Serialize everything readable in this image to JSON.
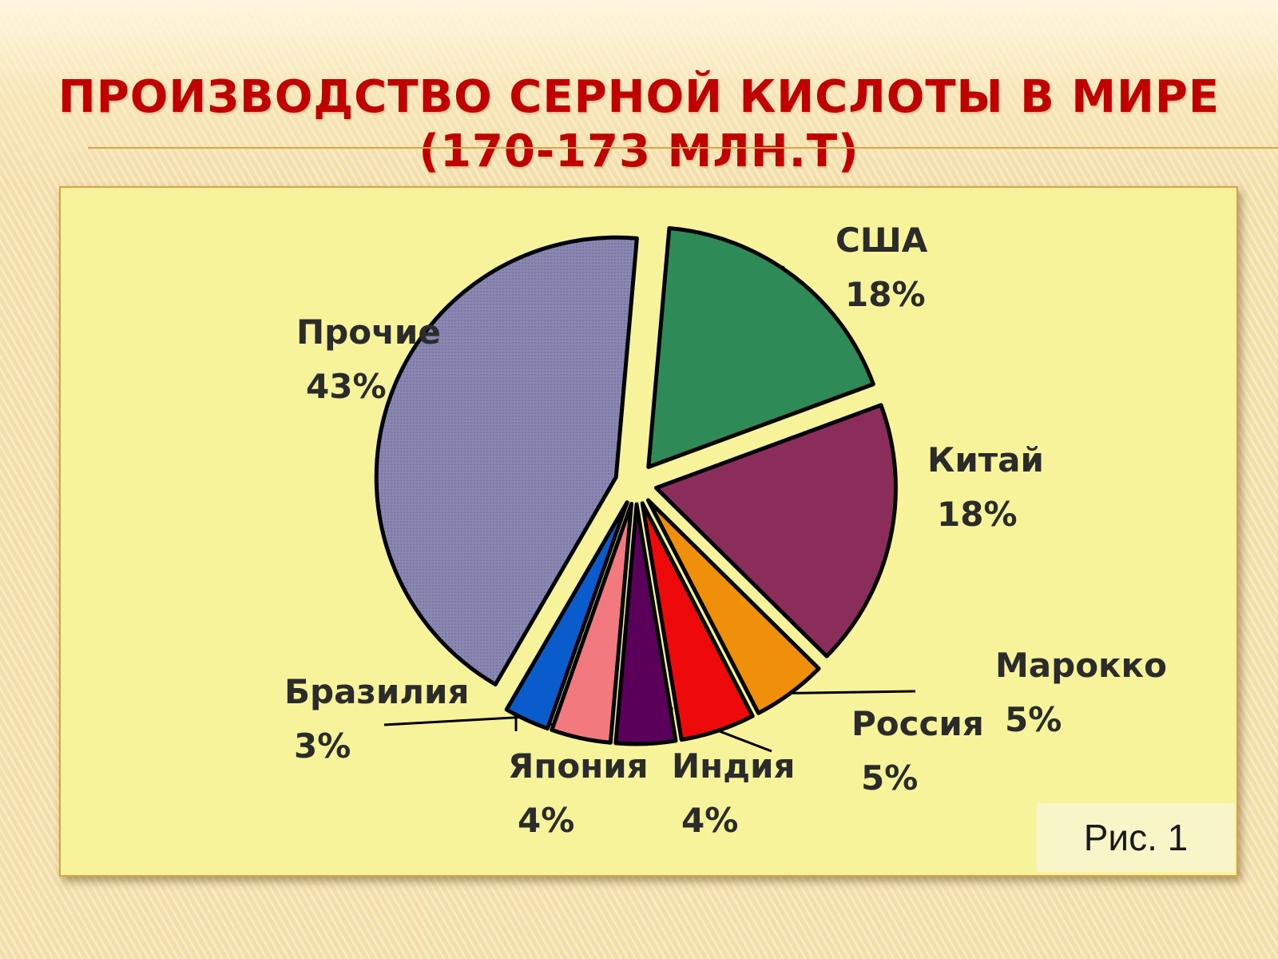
{
  "slide": {
    "title_line1": "ПРОИЗВОДСТВО СЕРНОЙ КИСЛОТЫ В МИРЕ",
    "title_line2": "(170-173 МЛН.Т)",
    "caption": "Рис. 1"
  },
  "chart_data": {
    "type": "pie",
    "title": "ПРОИЗВОДСТВО СЕРНОЙ КИСЛОТЫ В МИРЕ (170-173 МЛН.Т)",
    "unit": "%",
    "slices": [
      {
        "label": "США",
        "value": 18,
        "value_label": "18%",
        "color": "#2e8b57"
      },
      {
        "label": "Китай",
        "value": 18,
        "value_label": "18%",
        "color": "#8b2d5a"
      },
      {
        "label": "Марокко",
        "value": 5,
        "value_label": "5%",
        "color": "#f0900a"
      },
      {
        "label": "Россия",
        "value": 5,
        "value_label": "5%",
        "color": "#ee0a0a"
      },
      {
        "label": "Индия",
        "value": 4,
        "value_label": "4%",
        "color": "#5a005a"
      },
      {
        "label": "Япония",
        "value": 4,
        "value_label": "4%",
        "color": "#f27a7e"
      },
      {
        "label": "Бразилия",
        "value": 3,
        "value_label": "3%",
        "color": "#0a5ccc"
      },
      {
        "label": "Прочие",
        "value": 43,
        "value_label": "43%",
        "color": "#8a88b3"
      }
    ]
  }
}
